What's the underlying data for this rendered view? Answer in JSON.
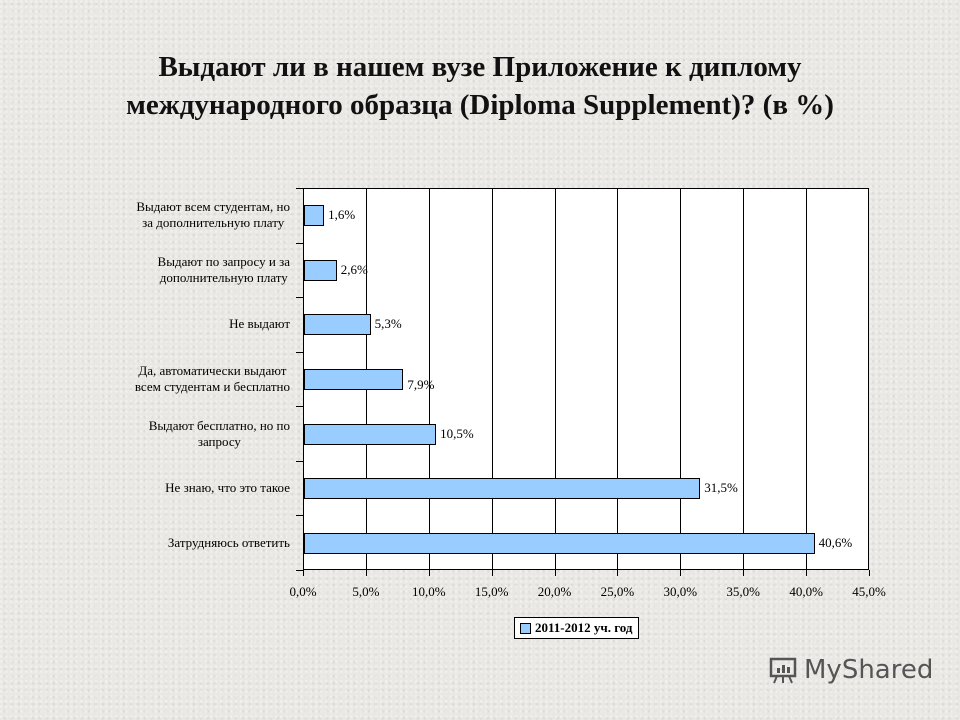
{
  "title": {
    "line1": "Выдают ли в нашем вузе Приложение к диплому",
    "line2": "международного образца (Diploma Supplement)? (в %)"
  },
  "legend": {
    "label": "2011-2012 уч. год",
    "color": "#99ccff"
  },
  "watermark": {
    "text": "MyShared"
  },
  "chart_data": {
    "type": "bar",
    "orientation": "horizontal",
    "title": "Выдают ли в нашем вузе Приложение к диплому международного образца (Diploma Supplement)? (в %)",
    "xlabel": "",
    "ylabel": "",
    "xlim": [
      0,
      45
    ],
    "grid": true,
    "legend_position": "bottom",
    "x_tick_labels": [
      "0,0%",
      "5,0%",
      "10,0%",
      "15,0%",
      "20,0%",
      "25,0%",
      "30,0%",
      "35,0%",
      "40,0%",
      "45,0%"
    ],
    "categories": [
      "Выдают всем студентам, но за дополнительную плату",
      "Выдают по запросу и за дополнительную плату",
      "Не выдают",
      "Да, автоматически выдают всем студентам и бесплатно",
      "Выдают бесплатно, но по запросу",
      "Не знаю, что это такое",
      "Затрудняюсь ответить"
    ],
    "series": [
      {
        "name": "2011-2012 уч. год",
        "color": "#99ccff",
        "values": [
          1.6,
          2.6,
          5.3,
          7.9,
          10.5,
          31.5,
          40.6
        ],
        "labels": [
          "1,6%",
          "2,6%",
          "5,3%",
          "7,9%",
          "10,5%",
          "31,5%",
          "40,6%"
        ]
      }
    ]
  },
  "category_lines": [
    [
      "Выдают всем студентам, но",
      "за дополнительную плату"
    ],
    [
      "Выдают по запросу и за",
      "дополнительную плату"
    ],
    [
      "Не выдают"
    ],
    [
      "Да, автоматически выдают",
      "всем студентам и бесплатно"
    ],
    [
      "Выдают бесплатно, но по",
      "запросу"
    ],
    [
      "Не знаю, что это такое"
    ],
    [
      "Затрудняюсь ответить"
    ]
  ]
}
